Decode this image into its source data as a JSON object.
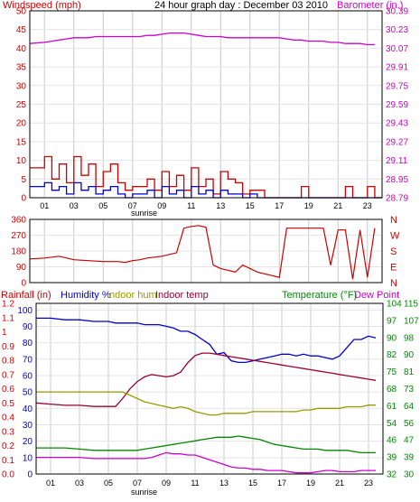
{
  "page": {
    "header_title": "24 hour graph day : December 03 2010",
    "bg_color": "#ffffff",
    "frame_color": "#000000",
    "grid_color": "#c8c8c8",
    "sunrise_label": "sunrise",
    "x_tick_labels": [
      "01",
      "03",
      "05",
      "07",
      "09",
      "11",
      "13",
      "15",
      "17",
      "19",
      "21",
      "23"
    ]
  },
  "chart_data": [
    {
      "id": "wind-baro",
      "type": "line",
      "left_label": "Windspeed (mph)",
      "right_label": "Barometer (in.)",
      "left_axis_color": "#cc0000",
      "right_axis_color": "#cc00cc",
      "y_left_ticks": [
        0,
        5,
        10,
        15,
        20,
        25,
        30,
        35,
        40,
        45,
        50
      ],
      "ylim_left": [
        0,
        50
      ],
      "y_right_ticks": [
        "28.79",
        "28.95",
        "29.11",
        "29.27",
        "29.43",
        "29.59",
        "29.75",
        "29.91",
        "30.07",
        "30.23",
        "30.39"
      ],
      "ylim_right": [
        28.79,
        30.39
      ],
      "x": [
        0,
        1,
        1.5,
        2,
        2.5,
        3,
        3.5,
        4,
        4.5,
        5,
        5.5,
        6,
        6.5,
        7,
        7.5,
        8,
        8.5,
        9,
        9.5,
        10,
        10.5,
        11,
        11.5,
        12,
        12.5,
        13,
        13.5,
        14,
        14.5,
        15,
        15.5,
        16,
        16.5,
        17,
        17.5,
        18,
        18.5,
        19,
        19.5,
        20,
        20.5,
        21,
        21.5,
        22,
        22.5,
        23,
        23.5
      ],
      "series": [
        {
          "name": "Barometer",
          "axis": "right",
          "color": "#cc00cc",
          "values": [
            30.11,
            30.12,
            30.13,
            30.14,
            30.15,
            30.16,
            30.16,
            30.16,
            30.17,
            30.17,
            30.17,
            30.17,
            30.17,
            30.17,
            30.17,
            30.18,
            30.18,
            30.19,
            30.2,
            30.2,
            30.2,
            30.19,
            30.18,
            30.17,
            30.17,
            30.17,
            30.16,
            30.16,
            30.16,
            30.16,
            30.16,
            30.16,
            30.16,
            30.16,
            30.15,
            30.14,
            30.14,
            30.13,
            30.13,
            30.13,
            30.12,
            30.12,
            30.11,
            30.11,
            30.11,
            30.1,
            30.1
          ]
        },
        {
          "name": "Wind gust",
          "axis": "left",
          "color": "#cc0000",
          "values": [
            8,
            11,
            5,
            9,
            4,
            11,
            6,
            9,
            3,
            7,
            9,
            4,
            2,
            3,
            3,
            5,
            2,
            7,
            3,
            6,
            2,
            8,
            3,
            5,
            1,
            7,
            5,
            4,
            1,
            2,
            2,
            0,
            0,
            0,
            0,
            0,
            3,
            0,
            0,
            0,
            0,
            0,
            3,
            0,
            0,
            3,
            0
          ]
        },
        {
          "name": "Wind speed",
          "axis": "left",
          "color": "#0000cc",
          "values": [
            3,
            4,
            2,
            3,
            1,
            4,
            2,
            3,
            1,
            2,
            3,
            1,
            0,
            1,
            1,
            2,
            0,
            3,
            1,
            2,
            0,
            3,
            1,
            2,
            0,
            2,
            1,
            1,
            0,
            1,
            0,
            0,
            0,
            0,
            0,
            0,
            0,
            0,
            0,
            0,
            0,
            0,
            0,
            0,
            0,
            0,
            0
          ]
        }
      ]
    },
    {
      "id": "wind-direction",
      "type": "line",
      "left_axis_color": "#cc0000",
      "right_axis_color": "#cc0000",
      "y_left_ticks": [
        0,
        90,
        180,
        270,
        360
      ],
      "ylim_left": [
        0,
        360
      ],
      "y_right_ticks": [
        "N",
        "E",
        "S",
        "W",
        "N"
      ],
      "x": [
        0,
        1,
        2,
        3,
        4,
        5,
        6,
        6.5,
        7,
        7.5,
        8,
        9,
        10,
        10.5,
        11,
        11.5,
        12,
        12.5,
        13,
        13.5,
        14,
        14.5,
        15,
        15.5,
        16,
        16.5,
        17,
        17.5,
        18,
        19,
        20,
        20.5,
        21,
        21.5,
        22,
        22.5,
        23,
        23.5
      ],
      "series": [
        {
          "name": "Wind direction",
          "axis": "left",
          "color": "#cc0000",
          "values": [
            135,
            140,
            150,
            130,
            125,
            120,
            120,
            115,
            125,
            130,
            140,
            150,
            170,
            310,
            320,
            325,
            315,
            100,
            80,
            70,
            60,
            100,
            80,
            60,
            50,
            40,
            30,
            310,
            310,
            310,
            310,
            100,
            300,
            300,
            20,
            300,
            30,
            310
          ]
        }
      ]
    },
    {
      "id": "rain-humidity-temperature",
      "type": "line",
      "top_labels": {
        "rainfall": "Rainfall (in)",
        "humidity": "Humidity %",
        "indoor_hum": "Indoor hum",
        "indoor_temp": "Indoor temp",
        "temperature": "Temperature (°F)",
        "dew_point": "Dew Point"
      },
      "label_colors": {
        "rainfall": "#cc0000",
        "humidity": "#0000cc",
        "indoor_hum": "#999900",
        "indoor_temp": "#990033",
        "temperature": "#008800",
        "dew_point": "#cc00cc"
      },
      "y_rain_ticks": [
        "0.0",
        "0.1",
        "0.2",
        "0.3",
        "0.4",
        "0.5",
        "0.6",
        "0.7",
        "0.8",
        "0.9",
        "1",
        "1.1",
        "1.2"
      ],
      "y_hum_ticks": [
        "0",
        "10",
        "20",
        "30",
        "40",
        "50",
        "60",
        "70",
        "80",
        "90",
        "100"
      ],
      "y_temp1_ticks": [
        "32",
        "39",
        "46",
        "54",
        "61",
        "68",
        "75",
        "82",
        "90",
        "97",
        "104"
      ],
      "y_temp2_ticks": [
        "30",
        "39",
        "47",
        "56",
        "64",
        "73",
        "81",
        "90",
        "98",
        "107",
        "115"
      ],
      "ylim_hum": [
        0,
        104
      ],
      "ylim_temp1": [
        32,
        104
      ],
      "x": [
        0,
        1,
        2,
        3,
        4,
        5,
        5.5,
        6,
        6.5,
        7,
        7.5,
        8,
        8.5,
        9,
        9.5,
        10,
        10.5,
        11,
        11.5,
        12,
        12.5,
        13,
        13.5,
        14,
        14.5,
        15,
        15.5,
        16,
        16.5,
        17,
        17.5,
        18,
        18.5,
        19,
        19.5,
        20,
        20.5,
        21,
        21.5,
        22,
        22.5,
        23,
        23.5
      ],
      "series": [
        {
          "name": "Humidity",
          "axis": "hum",
          "color": "#0000cc",
          "values": [
            95,
            95,
            94,
            94,
            93,
            93,
            92,
            92,
            92,
            92,
            91,
            91,
            91,
            90,
            89,
            87,
            87,
            85,
            82,
            79,
            73,
            74,
            69,
            68,
            68,
            69,
            70,
            71,
            72,
            73,
            73,
            72,
            73,
            72,
            72,
            71,
            70,
            72,
            77,
            82,
            82,
            84,
            83
          ]
        },
        {
          "name": "Indoor temp",
          "axis": "temp1",
          "color": "#990033",
          "values": [
            62,
            61.5,
            61,
            61,
            60.5,
            60.5,
            60.5,
            64,
            68,
            71,
            73,
            74,
            73.5,
            73,
            73.5,
            75,
            79,
            82,
            83,
            83,
            82.5,
            82,
            81.5,
            81,
            80.5,
            80,
            79.5,
            79,
            78.5,
            78,
            77.5,
            77,
            76.5,
            76,
            75.5,
            75,
            74.5,
            74,
            73.5,
            73,
            72.5,
            72,
            71.5
          ]
        },
        {
          "name": "Indoor hum",
          "axis": "hum",
          "color": "#999900",
          "values": [
            50,
            50,
            50,
            50,
            50,
            50,
            50,
            50,
            48,
            46,
            44,
            43,
            42,
            41,
            40,
            41,
            40,
            38,
            37,
            36,
            36,
            37,
            37,
            37,
            37,
            38,
            38,
            38,
            38,
            38,
            38,
            38,
            39,
            39,
            40,
            40,
            40,
            40,
            41,
            41,
            41,
            42,
            42
          ]
        },
        {
          "name": "Temperature",
          "axis": "temp1",
          "color": "#008800",
          "values": [
            43,
            43,
            43,
            42.5,
            42,
            42,
            42,
            42,
            42,
            42,
            42.5,
            43,
            43.5,
            44,
            44.5,
            45,
            45.5,
            46,
            46.5,
            47,
            47.5,
            47.5,
            47.5,
            48,
            47.5,
            47,
            46.5,
            45.5,
            44.5,
            44,
            43.5,
            43,
            42.5,
            42.5,
            42.5,
            42,
            42,
            42,
            42,
            41.5,
            41,
            41,
            41
          ]
        },
        {
          "name": "Dew Point",
          "axis": "temp1",
          "color": "#cc00cc",
          "values": [
            39,
            39,
            39,
            39,
            38.5,
            38.5,
            38.5,
            38.5,
            38.5,
            38.5,
            38.5,
            39,
            40,
            41,
            40.5,
            40.5,
            40,
            40,
            39,
            38,
            37,
            36,
            35,
            34.5,
            34.5,
            34,
            34,
            33.5,
            33.5,
            33.5,
            33,
            32.5,
            32.5,
            32.5,
            33,
            33.5,
            33.5,
            33,
            33,
            33,
            33.5,
            33.5,
            33.5
          ]
        },
        {
          "name": "Rainfall",
          "axis": "hum",
          "color": "#cc0000",
          "values": [
            0.3,
            0.3,
            0.3,
            0.3,
            0.3,
            0.3,
            0.3,
            0.3,
            0.3,
            0.3,
            0.3,
            0.3,
            0.3,
            0.3,
            0.3,
            0.3,
            0.3,
            0.3,
            0.3,
            0.3,
            0.3,
            0.3,
            0.3,
            0.3,
            0.3,
            0.3,
            0.3,
            0.3,
            0.3,
            0.3,
            0.3,
            0.3,
            0.3,
            0.3,
            0.3,
            0.3,
            0.3,
            0.3,
            0.3,
            0.3,
            0.3,
            0.3,
            0.3
          ]
        }
      ]
    }
  ]
}
